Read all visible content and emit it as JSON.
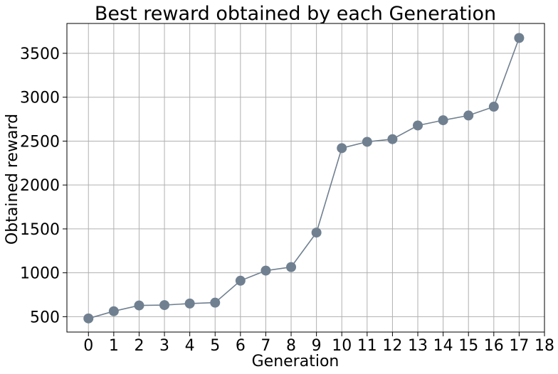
{
  "chart_data": {
    "type": "line",
    "title": "Best reward obtained by each Generation",
    "xlabel": "Generation",
    "ylabel": "Obtained reward",
    "x": [
      0,
      1,
      2,
      3,
      4,
      5,
      6,
      7,
      8,
      9,
      10,
      11,
      12,
      13,
      14,
      15,
      16,
      17
    ],
    "series": [
      {
        "values": [
          480,
          562,
          628,
          632,
          650,
          660,
          910,
          1025,
          1065,
          1458,
          2420,
          2492,
          2522,
          2678,
          2738,
          2792,
          2892,
          3675
        ]
      }
    ],
    "xticks": [
      "0",
      "1",
      "2",
      "3",
      "4",
      "5",
      "6",
      "7",
      "8",
      "9",
      "10",
      "11",
      "12",
      "13",
      "14",
      "15",
      "16",
      "17",
      "18"
    ],
    "yticks": [
      "500",
      "1000",
      "1500",
      "2000",
      "2500",
      "3000",
      "3500"
    ],
    "xlim": [
      -0.85,
      18
    ],
    "ylim": [
      325,
      3840
    ],
    "grid": true,
    "colors": {
      "line": "#708090",
      "marker": "#708090",
      "grid": "#b0b0b0",
      "axis": "#000000"
    }
  }
}
